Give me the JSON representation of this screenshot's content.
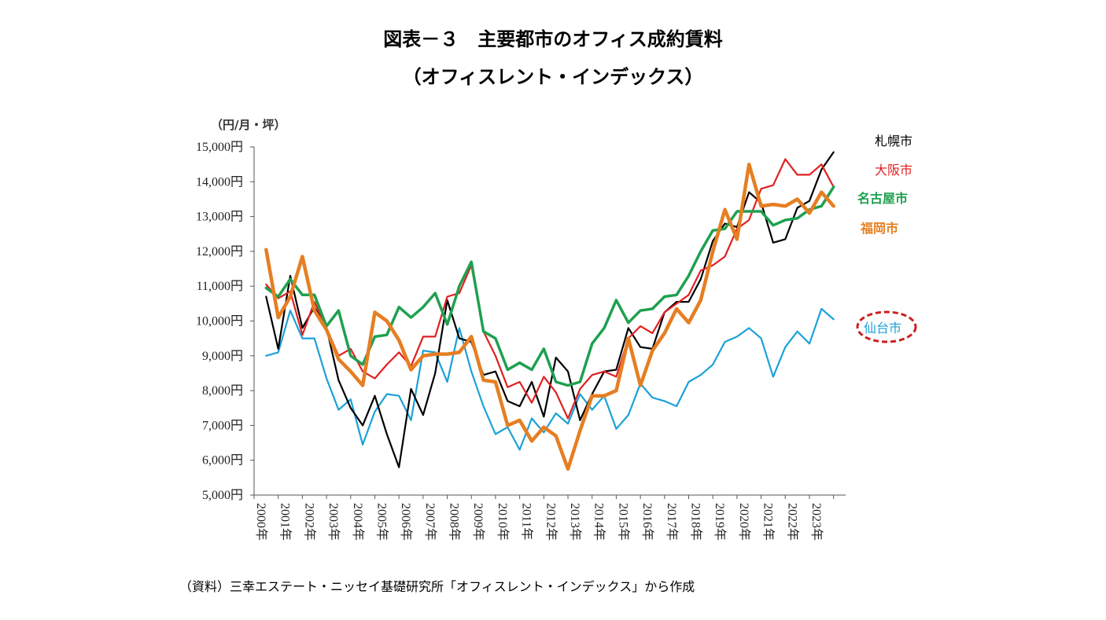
{
  "header": {
    "title": "図表－３　主要都市のオフィス成約賃料",
    "subtitle": "（オフィスレント・インデックス）",
    "unit": "（円/月・坪）"
  },
  "footer": {
    "source": "（資料）三幸エステート・ニッセイ基礎研究所「オフィスレント・インデックス」から作成"
  },
  "chart_data": {
    "type": "line",
    "title": "主要都市のオフィス成約賃料",
    "ylabel": "（円/月・坪）",
    "ylim": [
      5000,
      15000
    ],
    "yticks": [
      5000,
      6000,
      7000,
      8000,
      9000,
      10000,
      11000,
      12000,
      13000,
      14000,
      15000
    ],
    "ytick_labels": [
      "5,000円",
      "6,000円",
      "7,000円",
      "8,000円",
      "9,000円",
      "10,000円",
      "11,000円",
      "12,000円",
      "13,000円",
      "14,000円",
      "15,000円"
    ],
    "xtick_labels": [
      "2000年",
      "2001年",
      "2002年",
      "2003年",
      "2004年",
      "2005年",
      "2006年",
      "2007年",
      "2008年",
      "2009年",
      "2010年",
      "2011年",
      "2012年",
      "2013年",
      "2014年",
      "2015年",
      "2016年",
      "2017年",
      "2018年",
      "2019年",
      "2020年",
      "2021年",
      "2022年",
      "2023年"
    ],
    "x_note": "half-year data points from 2000年下期 to 2024年上期 (48 points)",
    "series": [
      {
        "name": "札幌市",
        "color": "#000000",
        "values": [
          10700,
          9200,
          11300,
          9800,
          10400,
          9800,
          8300,
          7500,
          7000,
          7850,
          6750,
          5800,
          8050,
          7300,
          8500,
          10600,
          9500,
          9400,
          8450,
          8550,
          7700,
          7550,
          8250,
          7250,
          8950,
          8550,
          7150,
          7900,
          8550,
          8600,
          9800,
          9250,
          9200,
          10250,
          10550,
          10550,
          11200,
          12300,
          12800,
          12700,
          13700,
          13400,
          12250,
          12350,
          13250,
          13450,
          14350,
          14850
        ],
        "label_color": "#000000"
      },
      {
        "name": "大阪市",
        "color": "#e02020",
        "values": [
          11050,
          10650,
          10850,
          9600,
          10550,
          9800,
          9000,
          9200,
          8550,
          8350,
          8750,
          9100,
          8700,
          9550,
          9550,
          10700,
          10800,
          11600,
          9700,
          9000,
          8100,
          8250,
          7650,
          8400,
          7950,
          7200,
          8050,
          8450,
          8550,
          8400,
          9500,
          9850,
          9650,
          10250,
          10500,
          10750,
          11450,
          11600,
          11850,
          12650,
          12900,
          13800,
          13900,
          14650,
          14200,
          14200,
          14500,
          13850
        ],
        "label_color": "#e02020"
      },
      {
        "name": "名古屋市",
        "color": "#1fa050",
        "values": [
          10950,
          10700,
          11200,
          10750,
          10750,
          9850,
          10300,
          9000,
          8750,
          9550,
          9600,
          10400,
          10100,
          10400,
          10800,
          9900,
          11000,
          11700,
          9700,
          9500,
          8600,
          8800,
          8600,
          9200,
          8250,
          8150,
          8250,
          9350,
          9800,
          10600,
          9950,
          10300,
          10350,
          10700,
          10750,
          11300,
          12000,
          12600,
          12650,
          13150,
          13150,
          13150,
          12750,
          12900,
          12950,
          13200,
          13300,
          13850
        ],
        "label_color": "#1fa050"
      },
      {
        "name": "福岡市",
        "color": "#e67e22",
        "values": [
          12050,
          10100,
          10700,
          11850,
          10300,
          9750,
          8900,
          8550,
          8150,
          10250,
          10000,
          9450,
          8600,
          9000,
          9050,
          9050,
          9100,
          9550,
          8300,
          8250,
          7000,
          7150,
          6550,
          6950,
          6700,
          5750,
          6850,
          7850,
          7850,
          8000,
          9500,
          8150,
          9150,
          9650,
          10350,
          9950,
          10600,
          12000,
          13200,
          12350,
          14500,
          13300,
          13350,
          13300,
          13500,
          13100,
          13700,
          13300
        ],
        "label_color": "#e67e22"
      },
      {
        "name": "仙台市",
        "color": "#1ba1d8",
        "values": [
          9000,
          9100,
          10300,
          9500,
          9500,
          8350,
          7450,
          7750,
          6450,
          7400,
          7900,
          7850,
          7150,
          9150,
          9100,
          8250,
          9800,
          8550,
          7550,
          6750,
          6950,
          6300,
          7200,
          6800,
          7350,
          7050,
          7900,
          7450,
          7850,
          6900,
          7300,
          8200,
          7800,
          7700,
          7550,
          8250,
          8450,
          8750,
          9400,
          9550,
          9800,
          9500,
          8400,
          9250,
          9700,
          9350,
          10350,
          10050
        ],
        "label_color": "#1ba1d8"
      }
    ]
  }
}
